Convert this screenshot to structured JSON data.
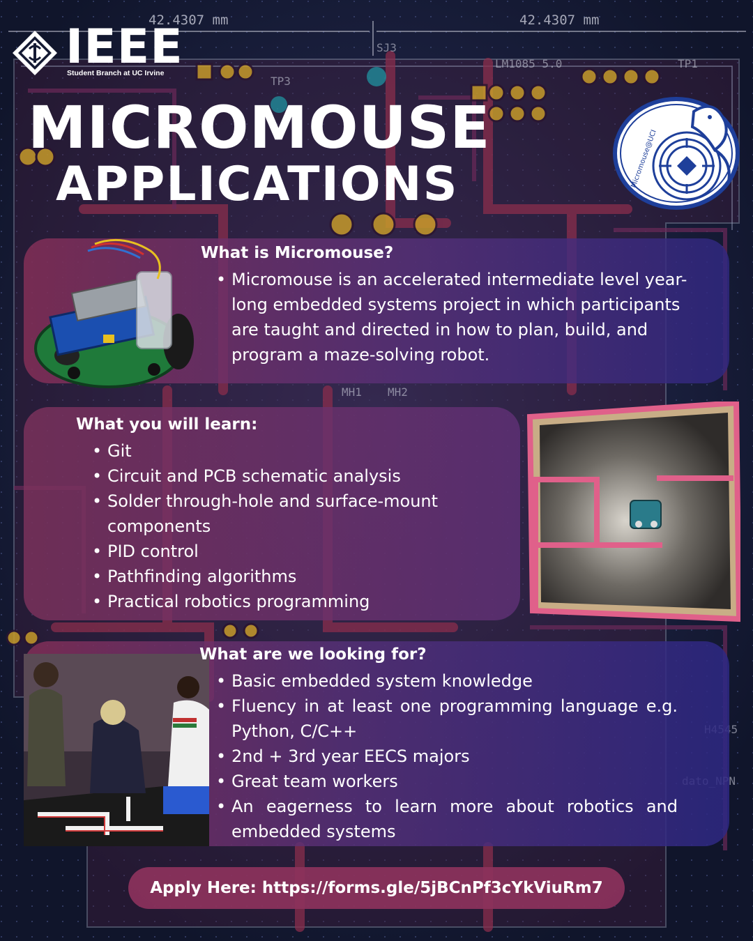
{
  "dimensions": {
    "left": "42.4307 mm",
    "right": "42.4307 mm"
  },
  "logo": {
    "name": "IEEE",
    "subtitle": "Student Branch at UC Irvine",
    "icon": "ieee-diamond-icon"
  },
  "title": {
    "line1": "MICROMOUSE",
    "line2": "APPLICATIONS"
  },
  "badge": {
    "text": "Micromouse@UCI",
    "icon": "mouse-maze-badge-icon"
  },
  "section1": {
    "title": "What is Micromouse?",
    "bullets": [
      "Micromouse is an accelerated intermediate level year-long embedded systems project in which participants are taught and directed in how to plan, build, and program a maze-solving robot."
    ]
  },
  "section2": {
    "title": "What you will learn:",
    "bullets": [
      "Git",
      "Circuit and PCB schematic analysis",
      "Solder through-hole and surface-mount components",
      "PID control",
      "Pathfinding algorithms",
      "Practical robotics programming"
    ]
  },
  "section3": {
    "title": "What are we looking for?",
    "bullets": [
      "Basic embedded system knowledge",
      "Fluency in at least one programming language e.g. Python, C/C++",
      "2nd + 3rd year EECS majors",
      "Great team workers",
      "An eagerness to learn more about robotics and embedded systems"
    ]
  },
  "apply": {
    "text": "Apply Here: https://forms.gle/5jBCnPf3cYkViuRm7"
  },
  "colors": {
    "background": "#141a33",
    "pcb_red": "#8a2e4c",
    "panel_pink": "#873058",
    "panel_blue": "#30288a",
    "maze_wall": "#e0608a"
  }
}
